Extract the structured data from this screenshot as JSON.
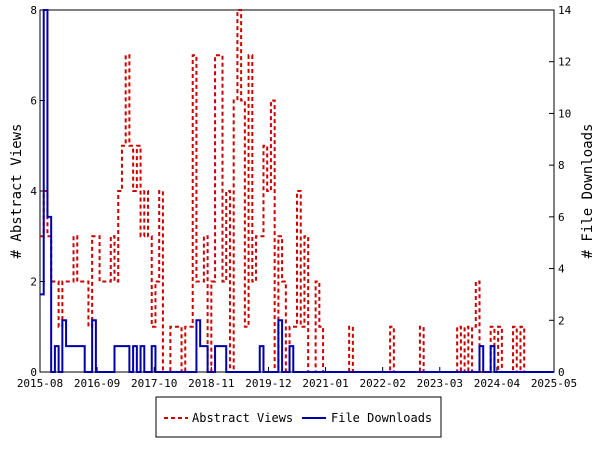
{
  "chart_data": {
    "type": "line",
    "title": "",
    "ylabel_left": "# Abstract Views",
    "ylabel_right": "# File Downloads",
    "x_ticks": [
      "2015-08",
      "2016-09",
      "2017-10",
      "2018-11",
      "2019-12",
      "2021-01",
      "2022-02",
      "2023-03",
      "2024-04",
      "2025-05"
    ],
    "x_range": [
      "2015-08",
      "2025-05"
    ],
    "ylim_left": [
      0,
      8
    ],
    "ylim_right": [
      0,
      14
    ],
    "yticks_left": [
      "0",
      "2",
      "4",
      "6",
      "8"
    ],
    "yticks_right": [
      "0",
      "2",
      "4",
      "6",
      "8",
      "10",
      "12",
      "14"
    ],
    "legend_position": "bottom",
    "grid": false,
    "series": [
      {
        "name": "Abstract Views",
        "axis": "left",
        "color": "#cc0000",
        "style": "dashed",
        "values": [
          3,
          4,
          3,
          2,
          2,
          1,
          2,
          2,
          2,
          3,
          2,
          2,
          2,
          1,
          3,
          3,
          2,
          2,
          2,
          3,
          2,
          4,
          5,
          7,
          5,
          4,
          5,
          3,
          4,
          3,
          1,
          2,
          4,
          0,
          0,
          1,
          1,
          1,
          0,
          1,
          1,
          7,
          2,
          2,
          3,
          0,
          2,
          7,
          7,
          2,
          4,
          0,
          6,
          8,
          6,
          1,
          7,
          2,
          3,
          3,
          5,
          4,
          6,
          0,
          3,
          2,
          0,
          1,
          1,
          4,
          1,
          3,
          0,
          0,
          2,
          1,
          0,
          0,
          0,
          0,
          0,
          0,
          0,
          1,
          0,
          0,
          0,
          0,
          0,
          0,
          0,
          0,
          0,
          0,
          1,
          0,
          0,
          0,
          0,
          0,
          0,
          0,
          1,
          0,
          0,
          0,
          0,
          0,
          0,
          0,
          0,
          0,
          1,
          0,
          1,
          0,
          1,
          2,
          0,
          0,
          0,
          1,
          0,
          1,
          0,
          0,
          0,
          1,
          0,
          1,
          0,
          0,
          0,
          0,
          0,
          0,
          0,
          0
        ]
      },
      {
        "name": "File Downloads",
        "axis": "right",
        "color": "#0000aa",
        "style": "solid",
        "values": [
          3,
          14,
          6,
          0,
          1,
          0,
          2,
          1,
          1,
          1,
          1,
          1,
          0,
          0,
          2,
          0,
          0,
          0,
          0,
          0,
          1,
          1,
          1,
          1,
          0,
          1,
          0,
          1,
          0,
          0,
          1,
          0,
          0,
          0,
          0,
          0,
          0,
          0,
          0,
          0,
          0,
          0,
          2,
          1,
          1,
          0,
          0,
          1,
          1,
          1,
          0,
          0,
          0,
          0,
          0,
          0,
          0,
          0,
          0,
          1,
          0,
          0,
          0,
          0,
          2,
          0,
          0,
          1,
          0,
          0,
          0,
          0,
          0,
          0,
          0,
          0,
          0,
          0,
          0,
          0,
          0,
          0,
          0,
          0,
          0,
          0,
          0,
          0,
          0,
          0,
          0,
          0,
          0,
          0,
          0,
          0,
          0,
          0,
          0,
          0,
          0,
          0,
          0,
          0,
          0,
          0,
          0,
          0,
          0,
          0,
          0,
          0,
          0,
          0,
          0,
          0,
          0,
          0,
          1,
          0,
          0,
          1,
          0,
          0,
          0,
          0,
          0,
          0,
          0,
          0,
          0,
          0,
          0,
          0,
          0,
          0,
          0,
          0
        ]
      }
    ]
  }
}
